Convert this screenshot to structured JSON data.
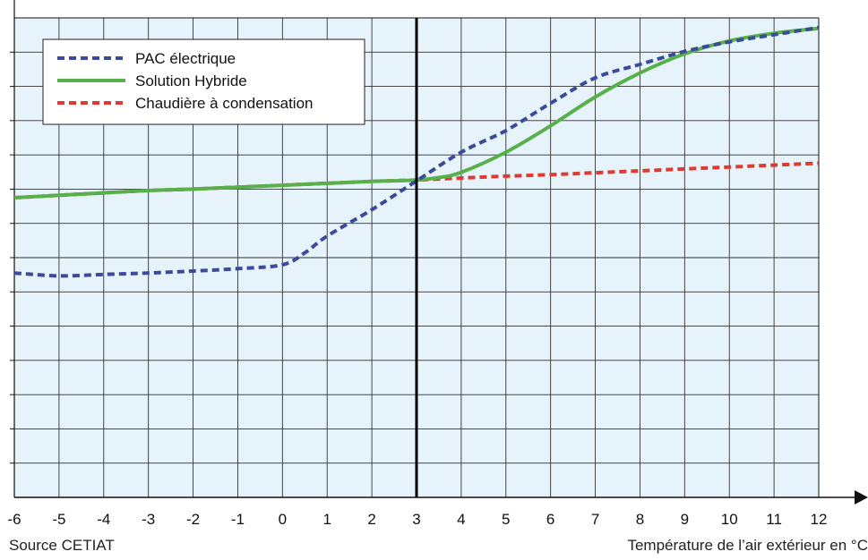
{
  "chart_data": {
    "type": "line",
    "title": "",
    "xlabel": "Température de l’air extérieur en °C",
    "ylabel": "",
    "source": "Source CETIAT",
    "xlim": [
      -6,
      12
    ],
    "ylim": [
      0,
      1
    ],
    "x_ticks": [
      -6,
      -5,
      -4,
      -3,
      -2,
      -1,
      0,
      1,
      2,
      3,
      4,
      5,
      6,
      7,
      8,
      9,
      10,
      11,
      12
    ],
    "grid": true,
    "legend_position": "top-left",
    "highlight_x": 3,
    "series": [
      {
        "name": "PAC électrique",
        "color": "#3b4a9b",
        "style": "dotted",
        "x": [
          -6,
          -5,
          -4,
          -3,
          -2,
          -1,
          0,
          0.5,
          1,
          2,
          3,
          4,
          5,
          6,
          7,
          8,
          9,
          10,
          11,
          12
        ],
        "y": [
          0.468,
          0.462,
          0.465,
          0.468,
          0.472,
          0.477,
          0.485,
          0.51,
          0.545,
          0.6,
          0.66,
          0.72,
          0.765,
          0.822,
          0.875,
          0.903,
          0.93,
          0.95,
          0.965,
          0.98
        ]
      },
      {
        "name": "Solution Hybride",
        "color": "#58b04a",
        "style": "solid",
        "x": [
          -6,
          -5,
          -4,
          -3,
          -2,
          -1,
          0,
          1,
          2,
          3,
          3.5,
          4,
          5,
          6,
          7,
          8,
          9,
          10,
          11,
          12
        ],
        "y": [
          0.625,
          0.63,
          0.635,
          0.64,
          0.643,
          0.647,
          0.651,
          0.655,
          0.659,
          0.662,
          0.667,
          0.678,
          0.72,
          0.775,
          0.835,
          0.885,
          0.925,
          0.952,
          0.968,
          0.978
        ]
      },
      {
        "name": "Chaudière à condensation",
        "color": "#dd3a32",
        "style": "dotted",
        "x": [
          -6,
          -5,
          -4,
          -3,
          -2,
          -1,
          0,
          1,
          2,
          3,
          4,
          5,
          6,
          7,
          8,
          9,
          10,
          11,
          12
        ],
        "y": [
          0.625,
          0.63,
          0.635,
          0.64,
          0.643,
          0.647,
          0.651,
          0.655,
          0.659,
          0.662,
          0.666,
          0.67,
          0.673,
          0.677,
          0.681,
          0.685,
          0.689,
          0.693,
          0.697
        ]
      }
    ]
  }
}
